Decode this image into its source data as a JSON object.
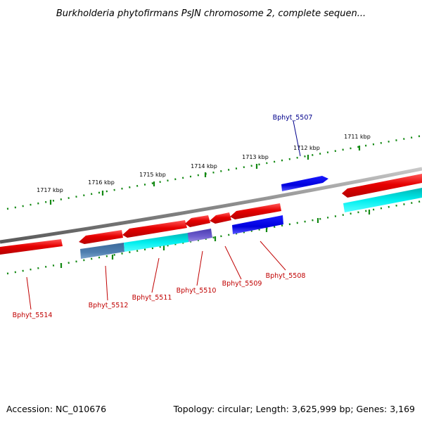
{
  "title": "Burkholderia phytofirmans PsJN chromosome 2, complete sequen...",
  "footer": {
    "accession": "Accession: NC_010676",
    "stats": "Topology: circular; Length: 3,625,999 bp; Genes: 3,169"
  },
  "ruler": {
    "upper_labels": [
      "1717 kbp",
      "1716 kbp",
      "1715 kbp",
      "1714 kbp",
      "1713 kbp",
      "1712 kbp",
      "1711 kbp"
    ]
  },
  "gene_labels": [
    {
      "text": "Bphyt_5507",
      "color": "#00008b"
    },
    {
      "text": "Bphyt_5508",
      "color": "#c00000"
    },
    {
      "text": "Bphyt_5509",
      "color": "#c00000"
    },
    {
      "text": "Bphyt_5510",
      "color": "#c00000"
    },
    {
      "text": "Bphyt_5511",
      "color": "#c00000"
    },
    {
      "text": "Bphyt_5512",
      "color": "#c00000"
    },
    {
      "text": "Bphyt_5514",
      "color": "#c00000"
    }
  ],
  "colors": {
    "gene_red": "#e60000",
    "gene_blue": "#0000dd",
    "gene_cyan": "#00eeee",
    "gene_steel": "#4f7fb0",
    "gene_purple": "#6f5fcf",
    "backbone": "#888888",
    "ruler": "#118811"
  }
}
